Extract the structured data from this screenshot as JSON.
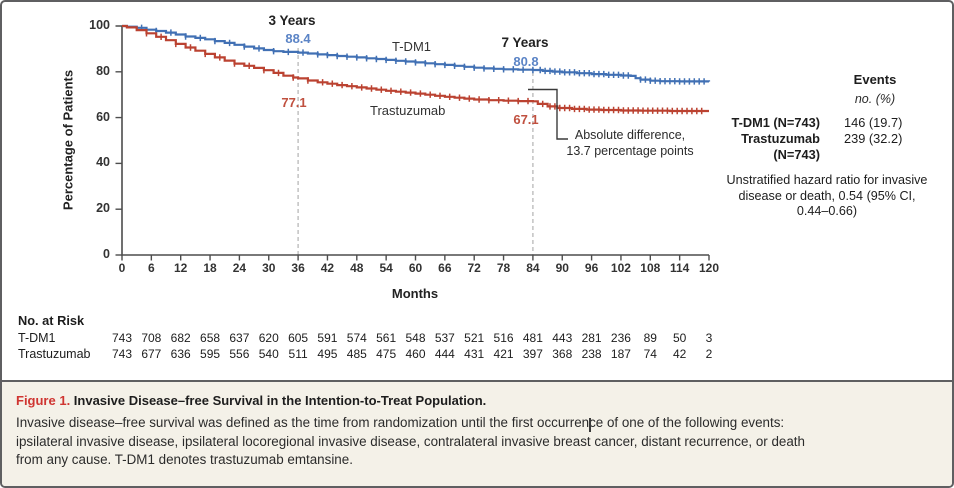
{
  "chart_data": {
    "type": "line",
    "title": "",
    "xlabel": "Months",
    "ylabel": "Percentage of Patients",
    "xlim": [
      0,
      120
    ],
    "ylim": [
      0,
      100
    ],
    "grid": false,
    "x_ticks": [
      0,
      6,
      12,
      18,
      24,
      30,
      36,
      42,
      48,
      54,
      60,
      66,
      72,
      78,
      84,
      90,
      96,
      102,
      108,
      114,
      120
    ],
    "y_ticks": [
      100,
      80,
      60,
      40,
      20,
      0
    ],
    "dashed_reference_months": [
      36,
      84
    ],
    "series": [
      {
        "name": "T-DM1",
        "color": "#4170b4",
        "label_color": "#5b84c6",
        "landmark_3y": "88.4",
        "landmark_7y": "80.8",
        "points": [
          [
            0,
            100
          ],
          [
            1,
            99.7
          ],
          [
            3,
            99.2
          ],
          [
            5,
            98.4
          ],
          [
            7,
            97.8
          ],
          [
            9,
            97.1
          ],
          [
            11,
            96.3
          ],
          [
            13,
            95.4
          ],
          [
            15,
            94.8
          ],
          [
            17,
            94.2
          ],
          [
            19,
            93.4
          ],
          [
            21,
            92.6
          ],
          [
            23,
            91.8
          ],
          [
            25,
            91
          ],
          [
            27,
            90.2
          ],
          [
            29,
            89.5
          ],
          [
            31,
            89
          ],
          [
            33,
            88.7
          ],
          [
            36,
            88.4
          ],
          [
            38,
            88
          ],
          [
            40,
            87.6
          ],
          [
            42,
            87.3
          ],
          [
            44,
            86.9
          ],
          [
            46,
            86.6
          ],
          [
            48,
            86.3
          ],
          [
            50,
            85.9
          ],
          [
            52,
            85.6
          ],
          [
            54,
            85.2
          ],
          [
            56,
            84.8
          ],
          [
            58,
            84.5
          ],
          [
            60,
            84.1
          ],
          [
            62,
            83.7
          ],
          [
            64,
            83.3
          ],
          [
            66,
            83
          ],
          [
            68,
            82.6
          ],
          [
            70,
            82.2
          ],
          [
            72,
            81.8
          ],
          [
            74,
            81.5
          ],
          [
            76,
            81.3
          ],
          [
            78,
            81.1
          ],
          [
            81,
            80.9
          ],
          [
            84,
            80.8
          ],
          [
            86,
            80.4
          ],
          [
            88,
            80.1
          ],
          [
            90,
            79.8
          ],
          [
            93,
            79.4
          ],
          [
            96,
            79
          ],
          [
            99,
            78.7
          ],
          [
            102,
            78.4
          ],
          [
            104,
            78.2
          ],
          [
            105,
            77.2
          ],
          [
            106,
            76.6
          ],
          [
            108,
            76.1
          ],
          [
            110,
            75.9
          ],
          [
            114,
            75.8
          ],
          [
            120,
            75.7
          ]
        ],
        "censor_months": [
          4,
          7,
          10,
          13,
          16,
          19,
          22,
          25,
          28,
          31,
          34,
          37,
          40,
          42,
          44,
          46,
          48,
          50,
          52,
          54,
          56,
          58,
          60,
          62,
          64,
          66,
          68,
          70,
          72,
          74,
          76,
          78,
          80,
          82,
          84,
          85.5,
          86.5,
          87.5,
          88.5,
          89.5,
          90.5,
          91.5,
          92.5,
          93.5,
          94.5,
          95.5,
          96.5,
          97.5,
          98.5,
          99.5,
          100.5,
          101.5,
          102.5,
          103.5,
          106,
          107,
          108,
          109,
          110,
          111,
          112,
          113,
          114,
          115,
          116,
          117,
          118,
          119
        ]
      },
      {
        "name": "Trastuzumab",
        "color": "#bb4231",
        "label_color": "#c0503f",
        "landmark_3y": "77.1",
        "landmark_7y": "67.1",
        "points": [
          [
            0,
            100
          ],
          [
            1,
            99.4
          ],
          [
            3,
            98.2
          ],
          [
            5,
            96.8
          ],
          [
            7,
            95.3
          ],
          [
            9,
            93.8
          ],
          [
            11,
            92.2
          ],
          [
            13,
            90.6
          ],
          [
            15,
            89.2
          ],
          [
            17,
            87.8
          ],
          [
            19,
            86.3
          ],
          [
            21,
            84.9
          ],
          [
            23,
            83.6
          ],
          [
            25,
            82.6
          ],
          [
            27,
            81.7
          ],
          [
            29,
            80.7
          ],
          [
            31,
            79.5
          ],
          [
            33,
            78.3
          ],
          [
            35,
            77.5
          ],
          [
            36,
            77.1
          ],
          [
            38,
            76.2
          ],
          [
            40,
            75.4
          ],
          [
            42,
            74.8
          ],
          [
            44,
            74.2
          ],
          [
            46,
            73.7
          ],
          [
            48,
            73.2
          ],
          [
            50,
            72.7
          ],
          [
            52,
            72.2
          ],
          [
            54,
            71.7
          ],
          [
            56,
            71.3
          ],
          [
            58,
            70.9
          ],
          [
            60,
            70.5
          ],
          [
            62,
            70
          ],
          [
            64,
            69.5
          ],
          [
            66,
            69.1
          ],
          [
            68,
            68.7
          ],
          [
            70,
            68.3
          ],
          [
            72,
            67.9
          ],
          [
            75,
            67.6
          ],
          [
            78,
            67.4
          ],
          [
            81,
            67.2
          ],
          [
            84,
            67.1
          ],
          [
            85,
            66
          ],
          [
            87,
            64.9
          ],
          [
            89,
            64.2
          ],
          [
            92,
            63.8
          ],
          [
            95,
            63.5
          ],
          [
            98,
            63.3
          ],
          [
            102,
            63.1
          ],
          [
            106,
            63
          ],
          [
            112,
            62.9
          ],
          [
            120,
            62.9
          ]
        ],
        "censor_months": [
          5,
          8,
          11,
          14,
          17,
          20,
          23,
          26,
          29,
          32,
          35,
          38,
          41,
          43,
          45,
          47,
          49,
          51,
          53,
          55,
          57,
          59,
          61,
          63,
          65,
          67,
          69,
          71,
          73,
          75,
          77,
          79,
          81,
          83,
          86,
          87.5,
          88.5,
          89.5,
          90.5,
          91.5,
          92.5,
          93.5,
          94.5,
          95.5,
          96.5,
          97.5,
          98.5,
          99.5,
          100.5,
          101.5,
          102.5,
          103.5,
          104.5,
          105.5,
          106.5,
          107.5,
          108.5,
          109.5,
          110.5,
          111.5,
          112.5,
          113.5,
          114.5,
          115.5,
          116.5,
          117.5,
          118.5
        ]
      }
    ]
  },
  "annotations": {
    "three_years": "3 Years",
    "seven_years": "7 Years",
    "tdm1_3y_value": "88.4",
    "tras_3y_value": "77.1",
    "tdm1_7y_value": "80.8",
    "tras_7y_value": "67.1",
    "tdm1_curve_label": "T-DM1",
    "tras_curve_label": "Trastuzumab",
    "abs_diff_line1": "Absolute difference,",
    "abs_diff_line2": "13.7 percentage points"
  },
  "events_panel": {
    "header": "Events",
    "subheader": "no. (%)",
    "rows": [
      {
        "label": "T-DM1 (N=743)",
        "label2": "",
        "value": "146 (19.7)"
      },
      {
        "label": "Trastuzumab",
        "label2": "(N=743)",
        "value": "239 (32.2)"
      }
    ],
    "note_lines": [
      "Unstratified hazard ratio for invasive",
      "disease or death, 0.54 (95% CI,",
      "0.44–0.66)"
    ]
  },
  "risk_table": {
    "header": "No. at Risk",
    "rows": [
      {
        "label": "T-DM1",
        "values": [
          743,
          708,
          682,
          658,
          637,
          620,
          605,
          591,
          574,
          561,
          548,
          537,
          521,
          516,
          481,
          443,
          281,
          236,
          89,
          50,
          3
        ]
      },
      {
        "label": "Trastuzumab",
        "values": [
          743,
          677,
          636,
          595,
          556,
          540,
          511,
          495,
          485,
          475,
          460,
          444,
          431,
          421,
          397,
          368,
          238,
          187,
          74,
          42,
          2
        ]
      }
    ]
  },
  "caption": {
    "figure_label": "Figure 1.",
    "title": " Invasive Disease–free Survival in the Intention-to-Treat Population.",
    "body_lines": [
      "Invasive disease–free survival was defined as the time from randomization until the first occurrence of one of the following events:",
      "ipsilateral invasive disease, ipsilateral locoregional invasive disease, contralateral invasive breast cancer, distant recurrence, or death",
      "from any cause. T-DM1 denotes trastuzumab emtansine."
    ]
  },
  "colors": {
    "tdm1_curve": "#4170b4",
    "trastuzumab_curve": "#bb4231",
    "figure_label_red": "#cf3531",
    "caption_background": "#f4f1e8",
    "axis": "#4d4d4d",
    "dashed_reference": "#b8b8b8"
  }
}
